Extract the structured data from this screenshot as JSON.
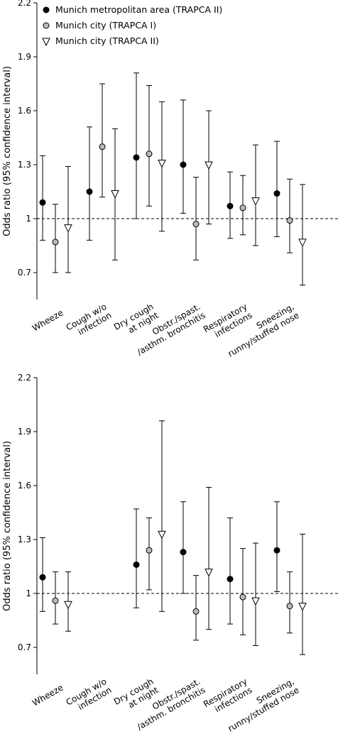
{
  "chart_data": [
    {
      "type": "errorbar",
      "y_label": "Odds ratio (95% confidence interval)",
      "categories": [
        [
          "Wheeze"
        ],
        [
          "Cough w/o",
          "infection"
        ],
        [
          "Dry cough",
          "at night"
        ],
        [
          "Obstr./spast.",
          "/asthm. bronchitis"
        ],
        [
          "Respiratory",
          "infections"
        ],
        [
          "Sneezing,",
          "runny/stuffed nose"
        ]
      ],
      "ylim": [
        0.55,
        2.2
      ],
      "yticks": [
        0.7,
        1.0,
        1.3,
        1.6,
        1.9,
        2.2
      ],
      "reference_line": 1.0,
      "legend": "top-left",
      "series": [
        {
          "name": "Munich metropolitan area (TRAPCA II)",
          "color": "#000000",
          "marker": "circle",
          "values": [
            1.09,
            1.15,
            1.34,
            1.3,
            1.07,
            1.14
          ],
          "lower": [
            0.88,
            0.88,
            1.0,
            1.03,
            0.89,
            0.9
          ],
          "upper": [
            1.35,
            1.51,
            1.81,
            1.66,
            1.26,
            1.43
          ]
        },
        {
          "name": "Munich city (TRAPCA I)",
          "color": "#bbbbbb",
          "marker": "circle",
          "values": [
            0.87,
            1.4,
            1.36,
            0.97,
            1.06,
            0.99
          ],
          "lower": [
            0.7,
            1.12,
            1.07,
            0.77,
            0.91,
            0.81
          ],
          "upper": [
            1.08,
            1.75,
            1.74,
            1.23,
            1.24,
            1.22
          ]
        },
        {
          "name": "Munich city (TRAPCA II)",
          "color": "#ffffff",
          "marker": "triangle-down",
          "values": [
            0.95,
            1.14,
            1.31,
            1.3,
            1.1,
            0.87
          ],
          "lower": [
            0.7,
            0.77,
            0.93,
            0.97,
            0.85,
            0.63
          ],
          "upper": [
            1.29,
            1.5,
            1.65,
            1.6,
            1.41,
            1.19
          ]
        }
      ]
    },
    {
      "type": "errorbar",
      "y_label": "Odds ratio (95% confidence interval)",
      "categories": [
        [
          "Wheeze"
        ],
        [
          "Cough w/o",
          "infection"
        ],
        [
          "Dry cough",
          "at night"
        ],
        [
          "Obstr./spast.",
          "/asthm. bronchitis"
        ],
        [
          "Respiratory",
          "infections"
        ],
        [
          "Sneezing,",
          "runny/stuffed nose"
        ]
      ],
      "ylim": [
        0.55,
        2.2
      ],
      "yticks": [
        0.7,
        1.0,
        1.3,
        1.6,
        1.9,
        2.2
      ],
      "reference_line": 1.0,
      "series": [
        {
          "color": "#000000",
          "marker": "circle",
          "values": [
            1.09,
            null,
            1.16,
            1.23,
            1.08,
            1.24
          ],
          "lower": [
            0.9,
            null,
            0.92,
            1.0,
            0.83,
            1.01
          ],
          "upper": [
            1.31,
            null,
            1.47,
            1.51,
            1.42,
            1.51
          ]
        },
        {
          "color": "#bbbbbb",
          "marker": "circle",
          "values": [
            0.96,
            null,
            1.24,
            0.9,
            0.98,
            0.93
          ],
          "lower": [
            0.83,
            null,
            1.02,
            0.74,
            0.77,
            0.78
          ],
          "upper": [
            1.12,
            null,
            1.42,
            1.1,
            1.25,
            1.12
          ]
        },
        {
          "color": "#ffffff",
          "marker": "triangle-down",
          "values": [
            0.94,
            null,
            1.33,
            1.12,
            0.96,
            0.93
          ],
          "lower": [
            0.79,
            null,
            0.9,
            0.8,
            0.71,
            0.66
          ],
          "upper": [
            1.12,
            null,
            1.96,
            1.59,
            1.28,
            1.33
          ]
        }
      ]
    }
  ]
}
